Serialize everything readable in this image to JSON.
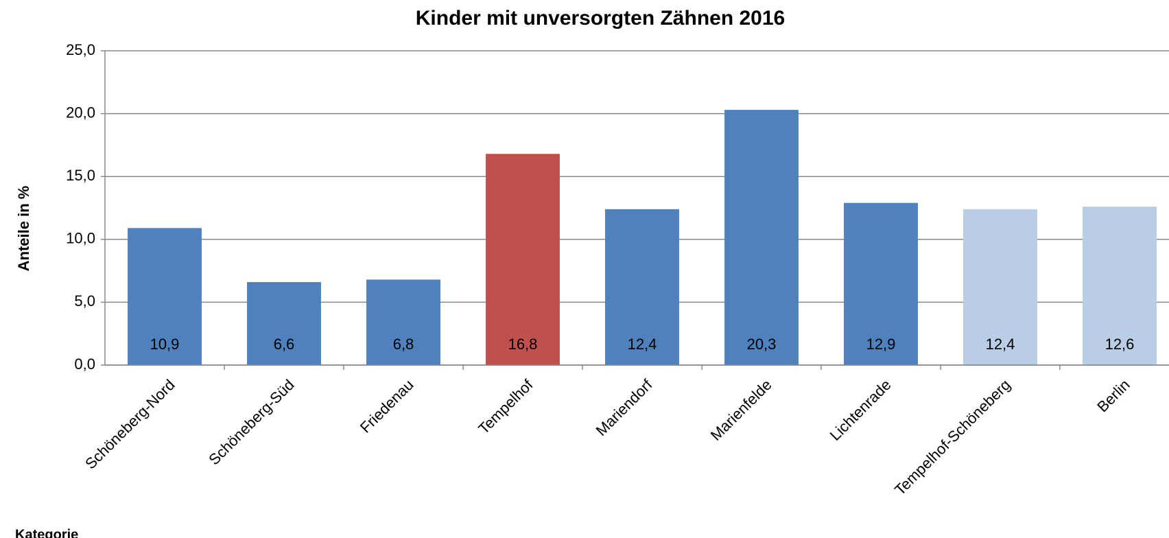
{
  "chart_data": {
    "type": "bar",
    "title": "Kinder mit unversorgten Zähnen 2016",
    "y_label": "Anteile in %",
    "x_label": "Kategorie",
    "categories": [
      "Schöneberg-Nord",
      "Schöneberg-Süd",
      "Friedenau",
      "Tempelhof",
      "Mariendorf",
      "Marienfelde",
      "Lichtenrade",
      "Tempelhof-Schöneberg",
      "Berlin"
    ],
    "values": [
      10.9,
      6.6,
      6.8,
      16.8,
      12.4,
      20.3,
      12.9,
      12.4,
      12.6
    ],
    "value_labels": [
      "10,9",
      "6,6",
      "6,8",
      "16,8",
      "12,4",
      "20,3",
      "12,9",
      "12,4",
      "12,6"
    ],
    "colors": [
      "#4f81bd",
      "#4f81bd",
      "#4f81bd",
      "#c0504d",
      "#4f81bd",
      "#4f81bd",
      "#4f81bd",
      "#b9cde5",
      "#b9cde5"
    ],
    "ylim": [
      0,
      25
    ],
    "yticks": [
      {
        "value": 0,
        "label": "0,0"
      },
      {
        "value": 5,
        "label": "5,0"
      },
      {
        "value": 10,
        "label": "10,0"
      },
      {
        "value": 15,
        "label": "15,0"
      },
      {
        "value": 20,
        "label": "20,0"
      },
      {
        "value": 25,
        "label": "25,0"
      }
    ],
    "grid": true
  }
}
